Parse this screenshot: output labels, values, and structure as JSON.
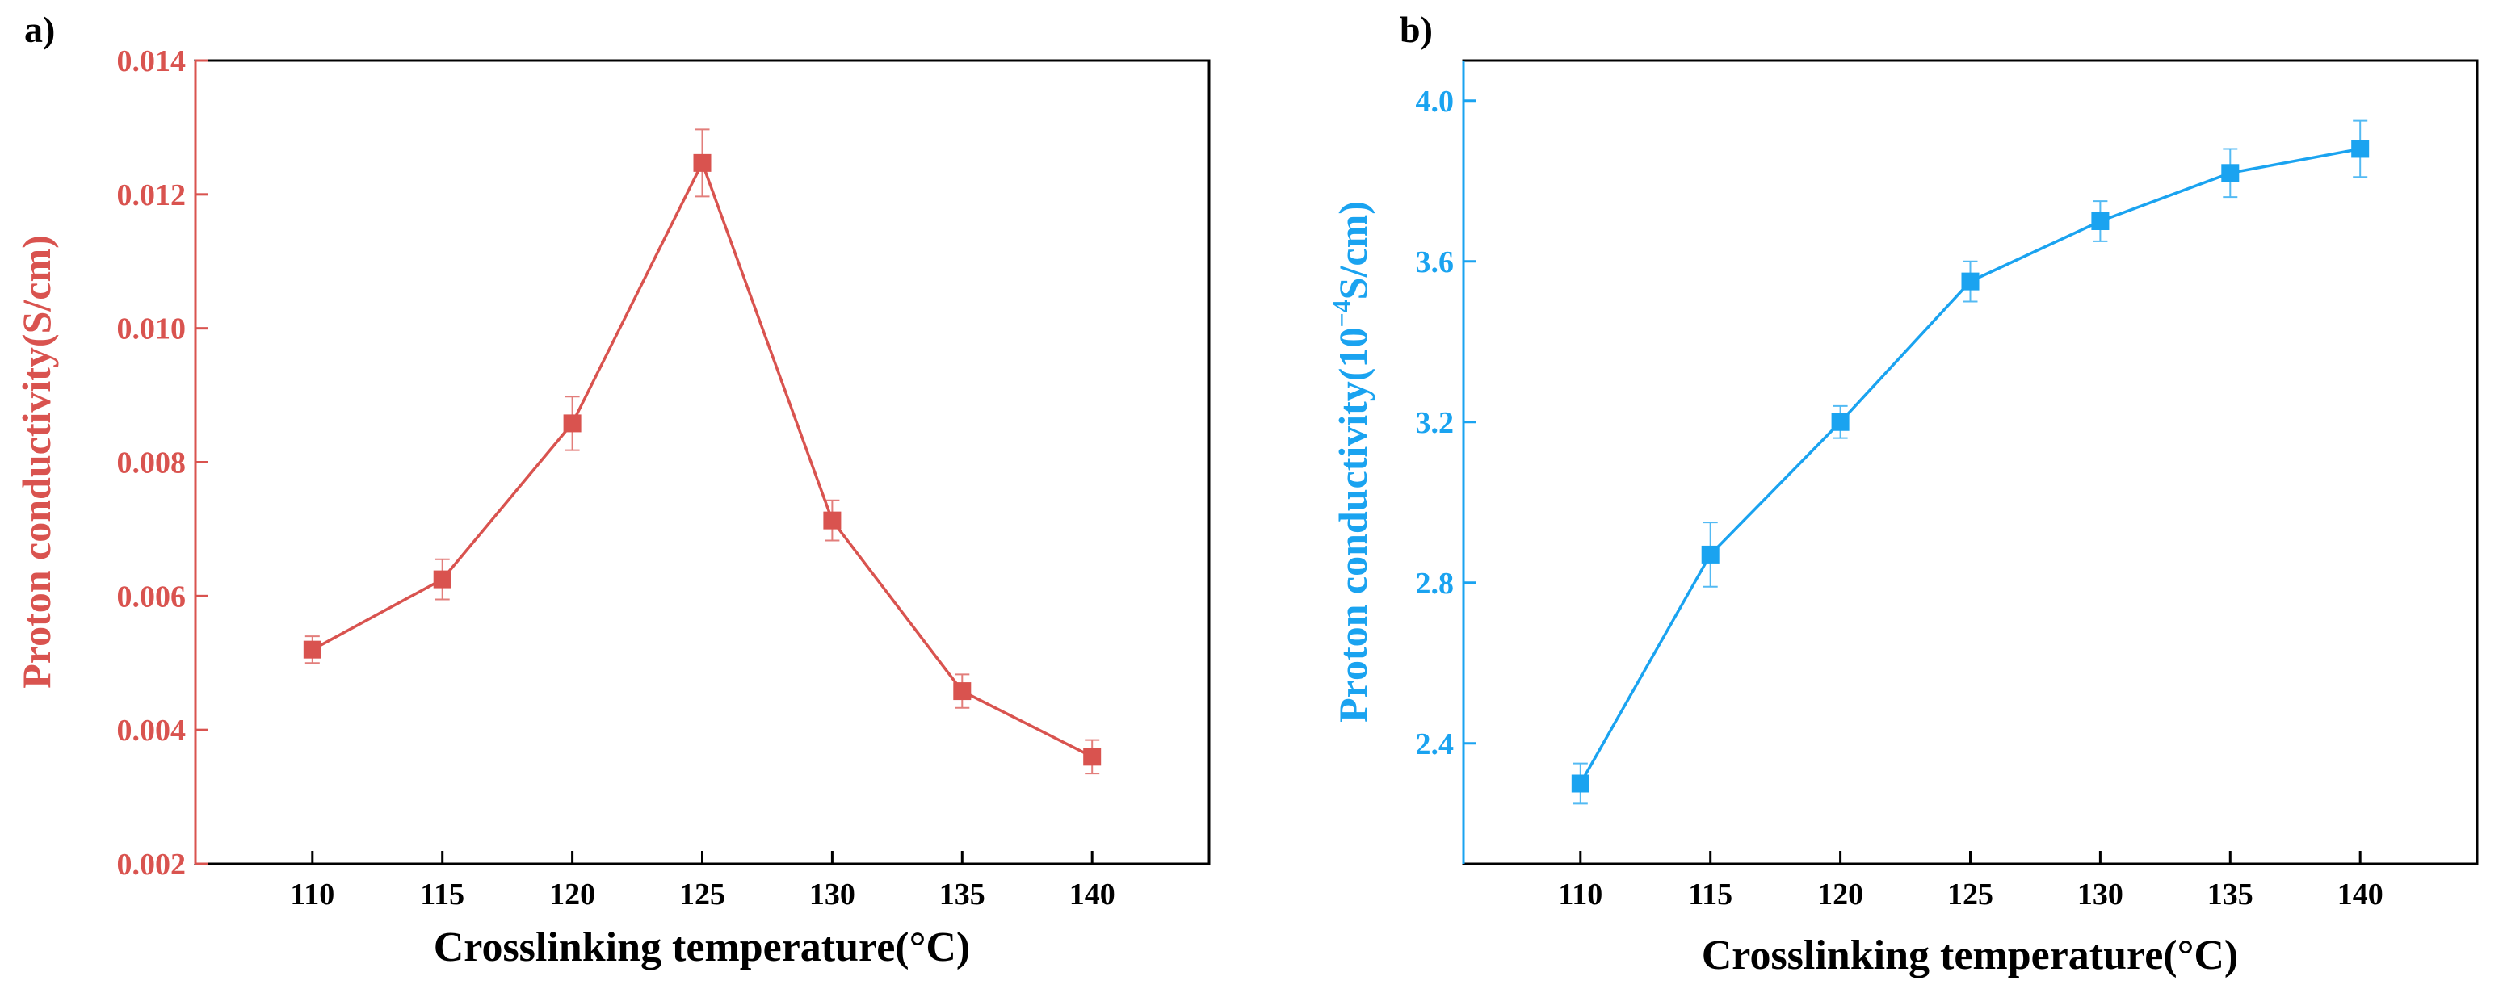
{
  "chart_data": [
    {
      "type": "line",
      "panel_label": "a)",
      "color": "#D9534F",
      "x": [
        110,
        115,
        120,
        125,
        130,
        135,
        140
      ],
      "values": [
        0.0052,
        0.00625,
        0.00858,
        0.01247,
        0.00713,
        0.00458,
        0.0036
      ],
      "errors": [
        0.0002,
        0.0003,
        0.0004,
        0.0005,
        0.0003,
        0.00025,
        0.00025
      ],
      "xlabel": "Crosslinking temperature(°C)",
      "ylabel": "Proton conductivity(S/cm)",
      "xlim": [
        105.5,
        144.5
      ],
      "ylim": [
        0.002,
        0.014
      ],
      "xticks": [
        110,
        115,
        120,
        125,
        130,
        135,
        140
      ],
      "xtick_labels": [
        "110",
        "115",
        "120",
        "125",
        "130",
        "135",
        "140"
      ],
      "yticks": [
        0.002,
        0.004,
        0.006,
        0.008,
        0.01,
        0.012,
        0.014
      ],
      "ytick_labels": [
        "0.002",
        "0.004",
        "0.006",
        "0.008",
        "0.010",
        "0.012",
        "0.014"
      ],
      "grid": false,
      "marker": "square"
    },
    {
      "type": "line",
      "panel_label": "b)",
      "color": "#1AA3F0",
      "x": [
        110,
        115,
        120,
        125,
        130,
        135,
        140
      ],
      "values": [
        2.3,
        2.87,
        3.2,
        3.55,
        3.7,
        3.82,
        3.88
      ],
      "errors": [
        0.05,
        0.08,
        0.04,
        0.05,
        0.05,
        0.06,
        0.07
      ],
      "xlabel": "Crosslinking temperature(°C)",
      "ylabel_main": "Proton conductivity(10",
      "ylabel_sup": "−4",
      "ylabel_tail": "S/cm)",
      "xlim": [
        105.5,
        144.5
      ],
      "ylim": [
        2.1,
        4.1
      ],
      "xticks": [
        110,
        115,
        120,
        125,
        130,
        135,
        140
      ],
      "xtick_labels": [
        "110",
        "115",
        "120",
        "125",
        "130",
        "135",
        "140"
      ],
      "yticks": [
        2.4,
        2.8,
        3.2,
        3.6,
        4.0
      ],
      "ytick_labels": [
        "2.4",
        "2.8",
        "3.2",
        "3.6",
        "4.0"
      ],
      "grid": false,
      "marker": "square"
    }
  ]
}
